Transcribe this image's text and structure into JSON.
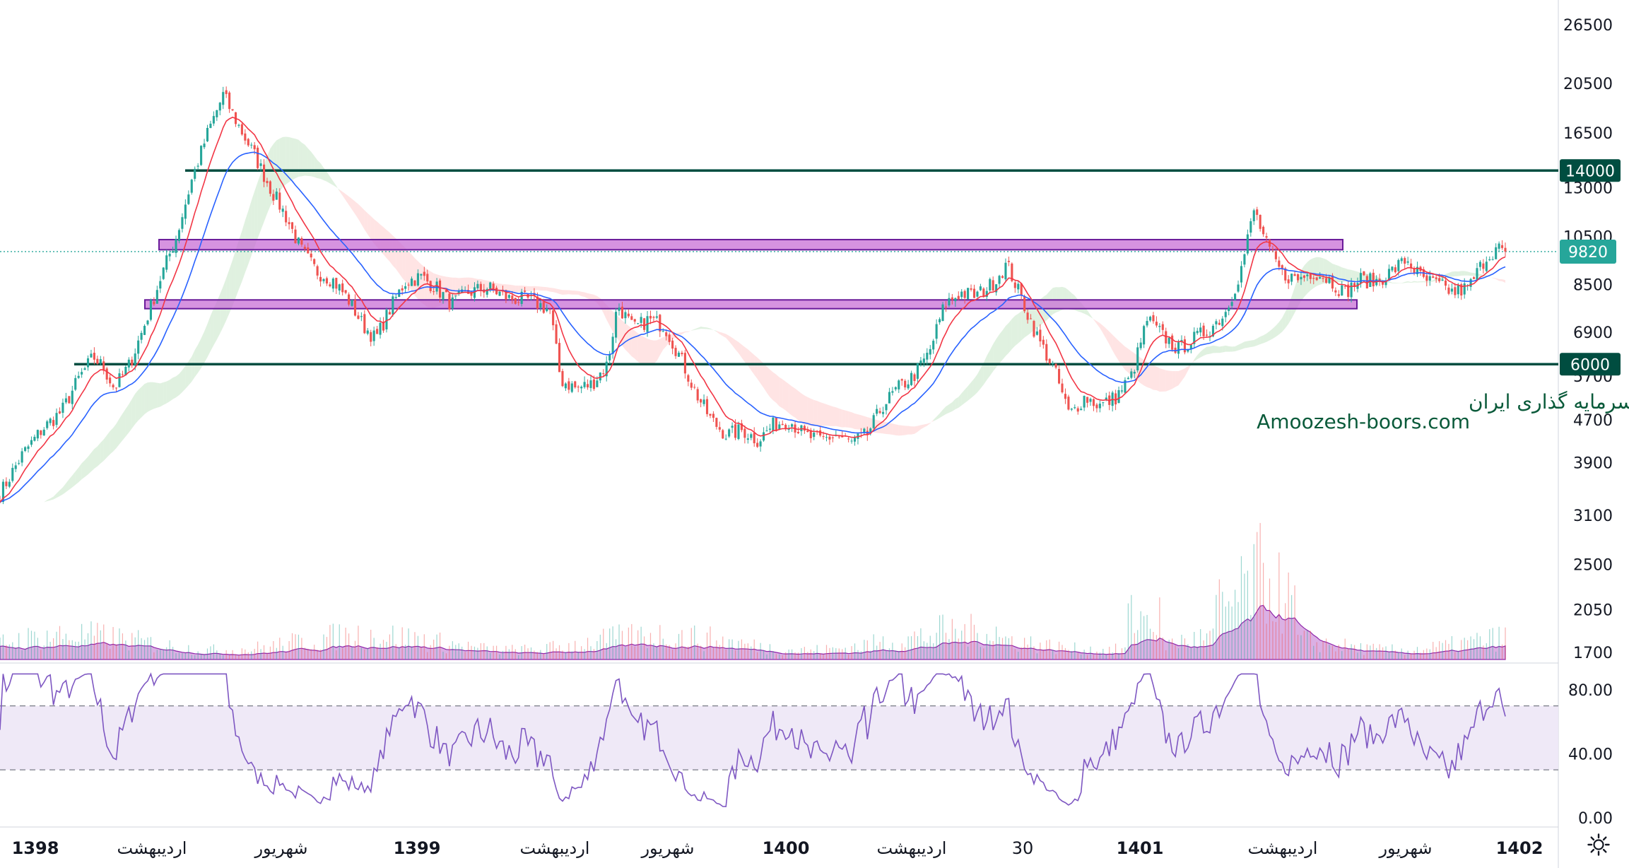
{
  "chart_data": {
    "type": "line",
    "colors": {
      "candle_up": "#26a69a",
      "candle_down": "#ef5350",
      "ema_fast": "#f23645",
      "ema_slow": "#2962ff",
      "cloud_up": "#a5d6a7",
      "cloud_down": "#ffb2b2",
      "volume_area": "#b04fc4",
      "rsi_line": "#7e57c2",
      "rsi_band": "#ede7f6",
      "zone_fill": "#c86fd6",
      "level_line": "#004d40",
      "current_price": "#26a69a"
    },
    "price_axis": [
      "26500",
      "20500",
      "16500",
      "13000",
      "10500",
      "8500",
      "6900",
      "5700",
      "4700",
      "3900",
      "3100",
      "2500",
      "2050",
      "1700"
    ],
    "price_scale": "log",
    "current_price": "9820",
    "levels": [
      {
        "label": "14000",
        "value": 14000
      },
      {
        "label": "6000",
        "value": 6000
      }
    ],
    "zones": [
      {
        "from": 9900,
        "to": 10350
      },
      {
        "from": 7650,
        "to": 7950
      }
    ],
    "price_series": {
      "name": "",
      "approx_close_path": [
        [
          0,
          3400
        ],
        [
          20,
          4000
        ],
        [
          40,
          4500
        ],
        [
          60,
          4900
        ],
        [
          75,
          5600
        ],
        [
          90,
          6200
        ],
        [
          100,
          5900
        ],
        [
          110,
          5400
        ],
        [
          125,
          6000
        ],
        [
          140,
          7200
        ],
        [
          155,
          8800
        ],
        [
          170,
          10500
        ],
        [
          185,
          13500
        ],
        [
          200,
          16500
        ],
        [
          215,
          19500
        ],
        [
          230,
          17000
        ],
        [
          245,
          15000
        ],
        [
          260,
          13000
        ],
        [
          275,
          11500
        ],
        [
          290,
          9900
        ],
        [
          305,
          9000
        ],
        [
          320,
          8700
        ],
        [
          335,
          8000
        ],
        [
          350,
          7100
        ],
        [
          362,
          6700
        ],
        [
          375,
          7600
        ],
        [
          390,
          8600
        ],
        [
          405,
          8800
        ],
        [
          420,
          8400
        ],
        [
          435,
          7800
        ],
        [
          450,
          8200
        ],
        [
          470,
          8400
        ],
        [
          490,
          8000
        ],
        [
          510,
          7950
        ],
        [
          530,
          7600
        ],
        [
          540,
          5600
        ],
        [
          555,
          5400
        ],
        [
          570,
          5500
        ],
        [
          585,
          6000
        ],
        [
          595,
          7800
        ],
        [
          610,
          7000
        ],
        [
          625,
          7300
        ],
        [
          640,
          7100
        ],
        [
          655,
          6200
        ],
        [
          670,
          5300
        ],
        [
          685,
          4700
        ],
        [
          700,
          4400
        ],
        [
          715,
          4500
        ],
        [
          730,
          4300
        ],
        [
          745,
          4600
        ],
        [
          760,
          4700
        ],
        [
          775,
          4400
        ],
        [
          790,
          4300
        ],
        [
          805,
          4400
        ],
        [
          820,
          4250
        ],
        [
          835,
          4400
        ],
        [
          850,
          5000
        ],
        [
          865,
          5400
        ],
        [
          880,
          5700
        ],
        [
          895,
          6300
        ],
        [
          910,
          7800
        ],
        [
          925,
          8200
        ],
        [
          940,
          8100
        ],
        [
          955,
          8500
        ],
        [
          970,
          9300
        ],
        [
          985,
          7900
        ],
        [
          1000,
          6700
        ],
        [
          1015,
          5900
        ],
        [
          1030,
          4800
        ],
        [
          1045,
          5200
        ],
        [
          1060,
          5000
        ],
        [
          1075,
          5200
        ],
        [
          1090,
          5700
        ],
        [
          1105,
          7300
        ],
        [
          1120,
          6800
        ],
        [
          1135,
          6400
        ],
        [
          1150,
          6700
        ],
        [
          1165,
          7000
        ],
        [
          1180,
          7500
        ],
        [
          1195,
          9000
        ],
        [
          1208,
          11800
        ],
        [
          1220,
          10100
        ],
        [
          1235,
          8900
        ],
        [
          1250,
          8700
        ],
        [
          1265,
          9000
        ],
        [
          1280,
          8700
        ],
        [
          1295,
          8200
        ],
        [
          1310,
          8700
        ],
        [
          1325,
          8600
        ],
        [
          1340,
          9000
        ],
        [
          1355,
          9500
        ],
        [
          1370,
          8700
        ],
        [
          1385,
          8500
        ],
        [
          1400,
          8200
        ],
        [
          1415,
          8400
        ],
        [
          1430,
          9500
        ],
        [
          1442,
          10000
        ],
        [
          1450,
          9820
        ]
      ]
    },
    "volume_series": {
      "name": ""
    },
    "rsi_series": {
      "name": "",
      "axis_labels": [
        "80.00",
        "40.00",
        "0.00"
      ],
      "upper_band": 70,
      "lower_band": 30,
      "ylim": [
        0,
        100
      ]
    },
    "time_axis": [
      {
        "label": "1398",
        "bold": true
      },
      {
        "label": "اردیبهشت",
        "bold": false
      },
      {
        "label": "شهریور",
        "bold": false
      },
      {
        "label": "1399",
        "bold": true
      },
      {
        "label": "اردیبهشت",
        "bold": false
      },
      {
        "label": "شهریور",
        "bold": false
      },
      {
        "label": "1400",
        "bold": true
      },
      {
        "label": "اردیبهشت",
        "bold": false
      },
      {
        "label": "30",
        "bold": false
      },
      {
        "label": "1401",
        "bold": true
      },
      {
        "label": "اردیبهشت",
        "bold": false
      },
      {
        "label": "شهریور",
        "bold": false
      },
      {
        "label": "1402",
        "bold": true
      }
    ],
    "grid": false
  },
  "watermark": {
    "line1": "انجمن خبرگان سرمایه گذاری ایران",
    "line2": "Amoozesh-boors.com"
  },
  "icons": {
    "settings": "gear-icon"
  }
}
